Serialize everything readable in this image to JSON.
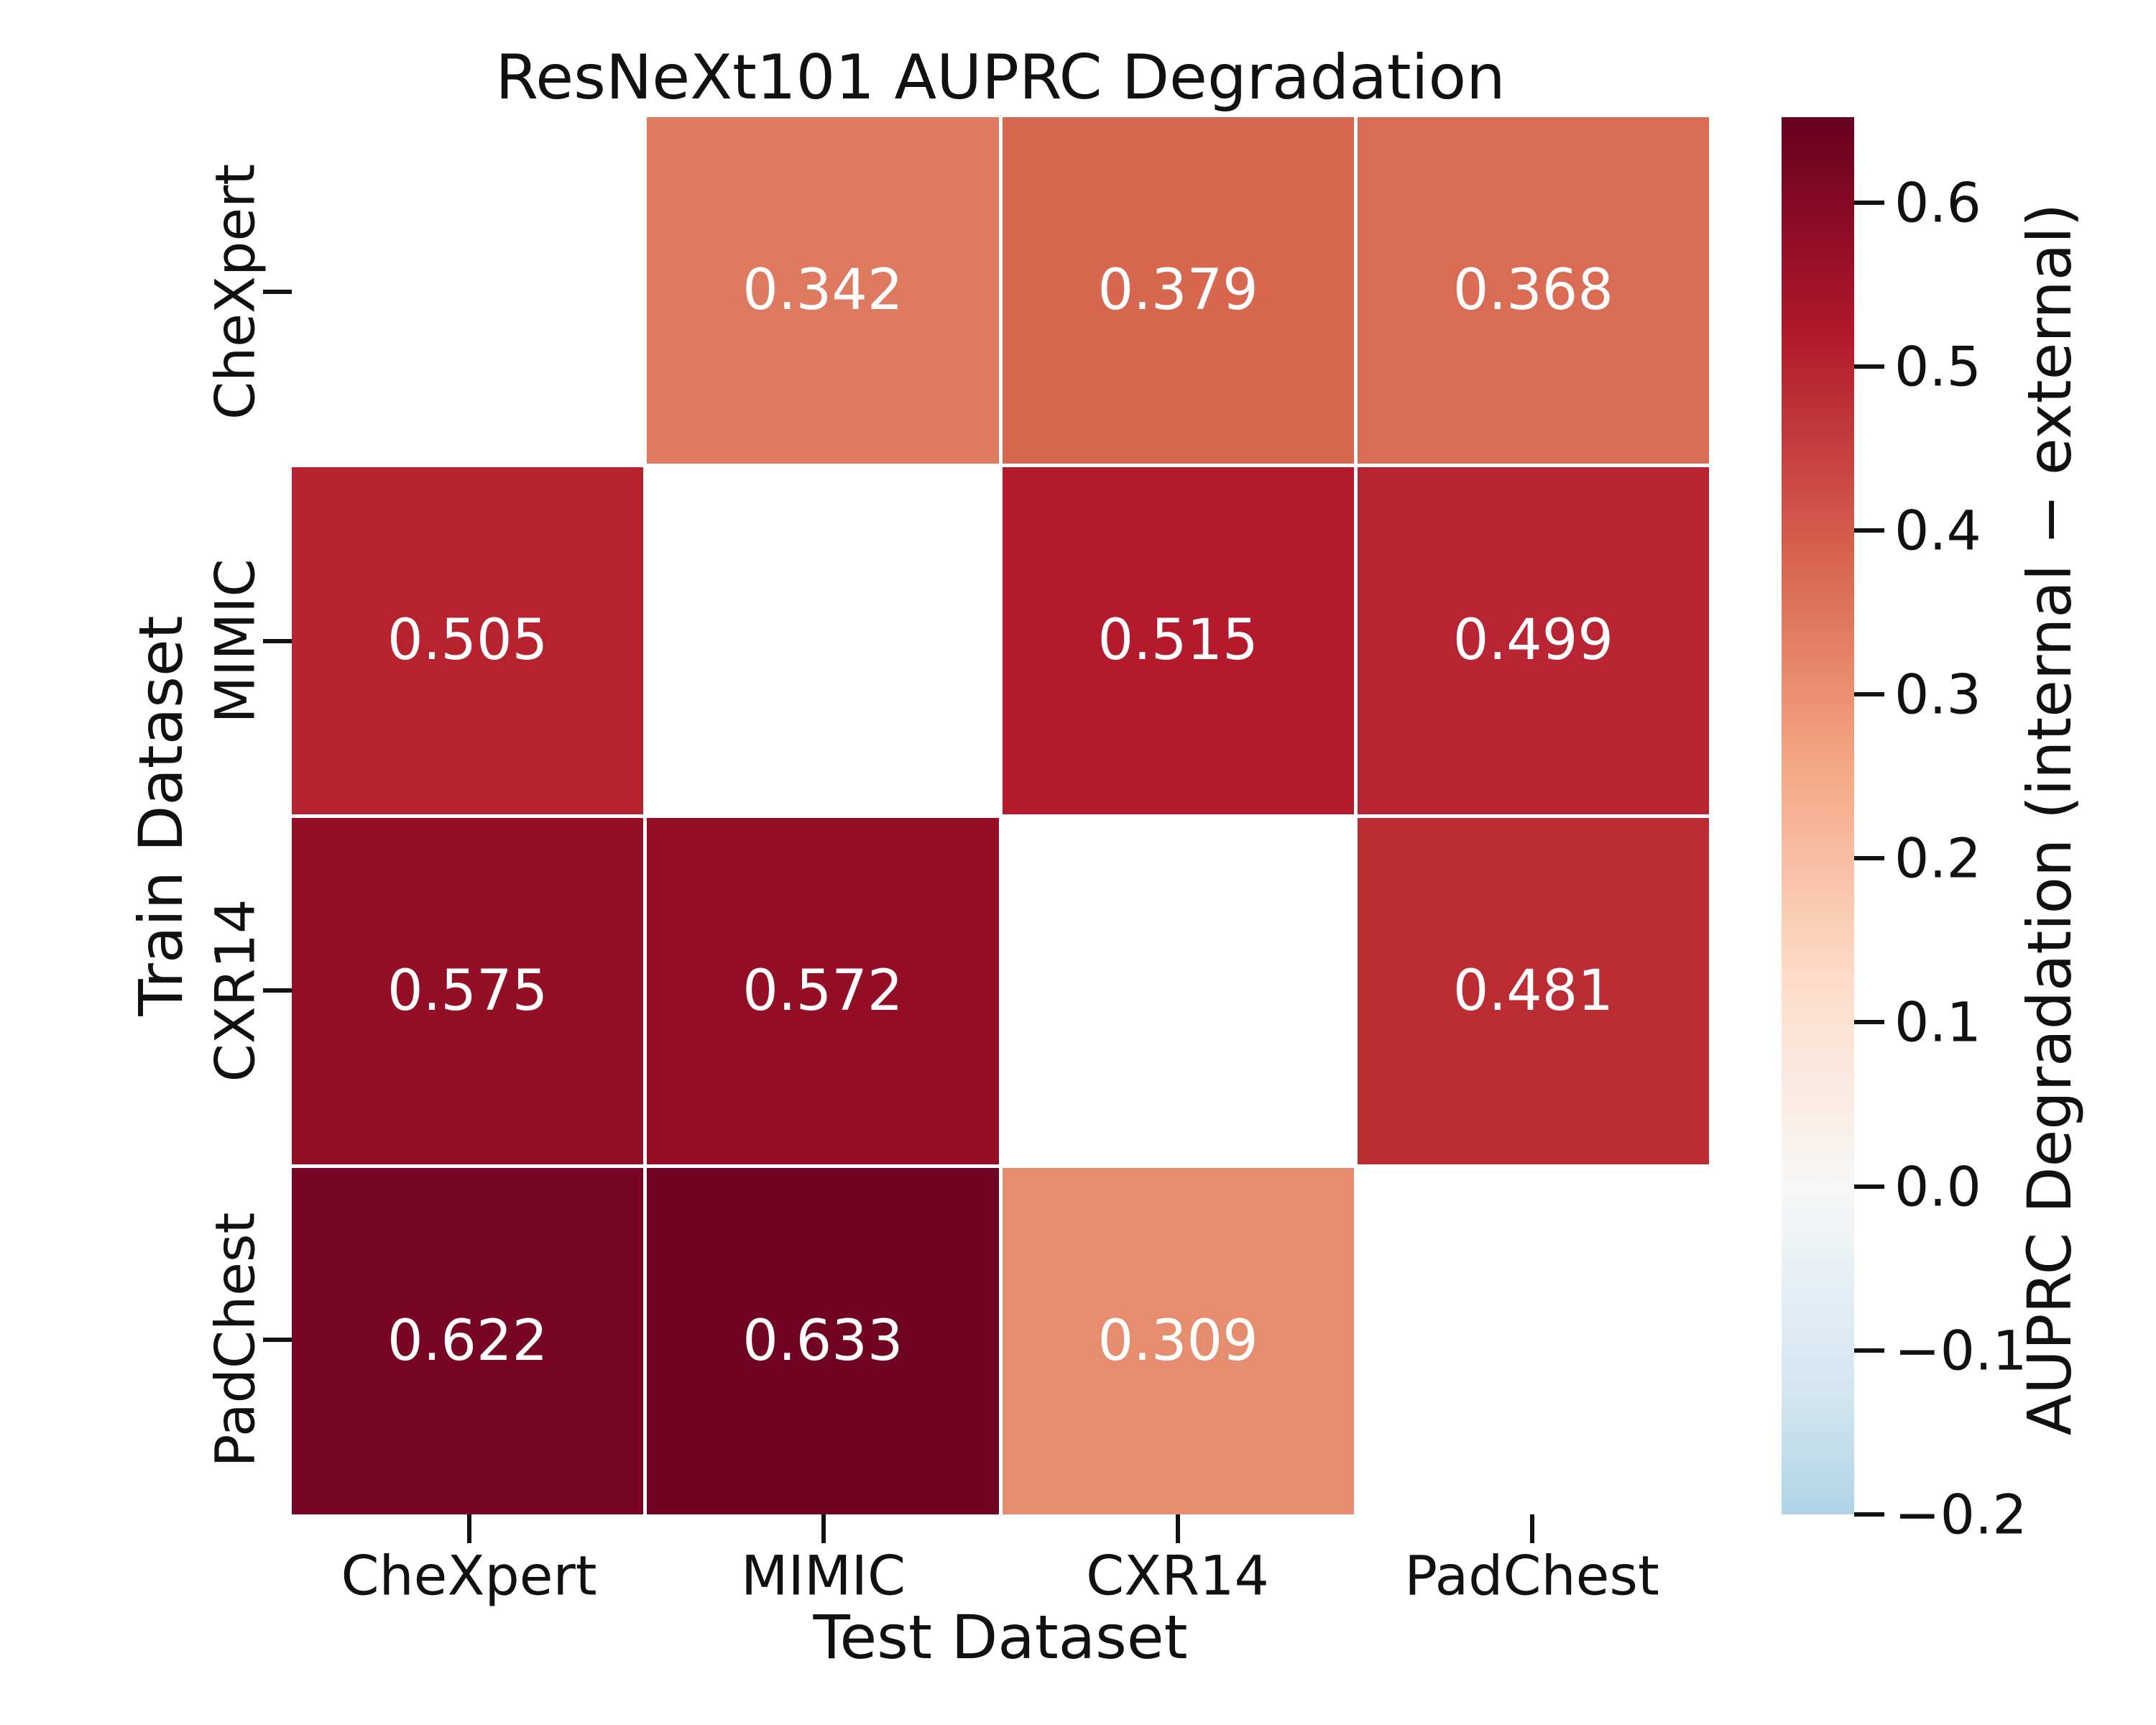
{
  "chart_data": {
    "type": "heatmap",
    "title": "ResNeXt101 AUPRC Degradation",
    "xlabel": "Test Dataset",
    "ylabel": "Train Dataset",
    "x_categories": [
      "CheXpert",
      "MIMIC",
      "CXR14",
      "PadChest"
    ],
    "y_categories": [
      "CheXpert",
      "MIMIC",
      "CXR14",
      "PadChest"
    ],
    "values": [
      [
        null,
        0.342,
        0.379,
        0.368
      ],
      [
        0.505,
        null,
        0.515,
        0.499
      ],
      [
        0.575,
        0.572,
        null,
        0.481
      ],
      [
        0.622,
        0.633,
        0.309,
        null
      ]
    ],
    "cell_colors": [
      [
        null,
        "#dd7a60",
        "#d7674f",
        "#da6c55"
      ],
      [
        "#b7222f",
        null,
        "#b31b2c",
        "#b82431"
      ],
      [
        "#930f26",
        "#940e26",
        null,
        "#bc2c33"
      ],
      [
        "#770523",
        "#700321",
        "#e68d70",
        null
      ]
    ],
    "empty_cell_color": "#ffffff",
    "annotation_text_color": "#ffffff",
    "value_decimals": 3,
    "grid_on": false,
    "colorbar": {
      "label": "AUPRC Degradation (internal − external)",
      "tick_labels": [
        "0.6",
        "0.5",
        "0.4",
        "0.3",
        "0.2",
        "0.1",
        "0.0",
        "−0.1",
        "−0.2"
      ],
      "tick_values": [
        0.6,
        0.5,
        0.4,
        0.3,
        0.2,
        0.1,
        0.0,
        -0.1,
        -0.2
      ],
      "top_value": 0.652,
      "bottom_value": -0.2,
      "gradient_stops": [
        {
          "pct": 0,
          "color": "#67001f"
        },
        {
          "pct": 15.5,
          "color": "#b2182b"
        },
        {
          "pct": 30.8,
          "color": "#d6604d"
        },
        {
          "pct": 46.0,
          "color": "#f4a582"
        },
        {
          "pct": 61.3,
          "color": "#fddbc7"
        },
        {
          "pct": 76.5,
          "color": "#f7f7f7"
        },
        {
          "pct": 91.8,
          "color": "#d1e5f0"
        },
        {
          "pct": 100,
          "color": "#afd4e6"
        }
      ]
    }
  }
}
